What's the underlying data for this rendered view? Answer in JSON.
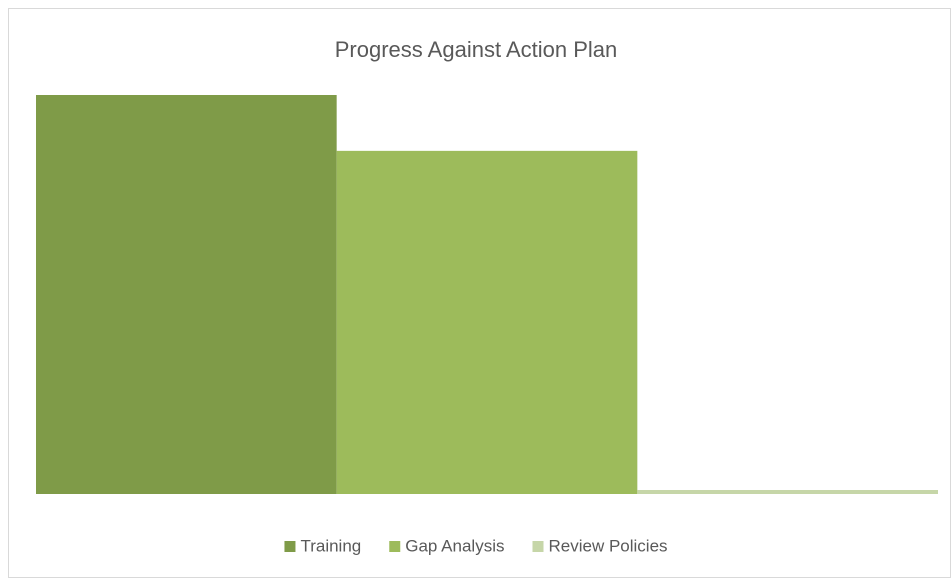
{
  "chart_data": {
    "type": "bar",
    "title": "Progress Against Action Plan",
    "series": [
      {
        "name": "Training",
        "color": "#7f9b48",
        "values": [
          100
        ]
      },
      {
        "name": "Gap Analysis",
        "color": "#9dbb5b",
        "values": [
          86
        ]
      },
      {
        "name": "Review Policies",
        "color": "#c6d6a8",
        "values": [
          1
        ]
      }
    ],
    "ylim": [
      0,
      100
    ],
    "legend": "bottom"
  }
}
